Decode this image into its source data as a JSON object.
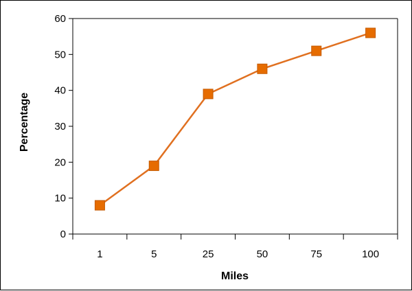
{
  "chart_data": {
    "type": "line",
    "categories": [
      "1",
      "5",
      "25",
      "50",
      "75",
      "100"
    ],
    "series": [
      {
        "values": [
          8,
          19,
          39,
          46,
          51,
          56
        ]
      }
    ],
    "title": "",
    "xlabel": "Miles",
    "ylabel": "Percentage",
    "ylim": [
      0,
      60
    ],
    "yticks": [
      0,
      10,
      20,
      30,
      40,
      50,
      60
    ],
    "grid": false,
    "legend": "none",
    "colors": {
      "line": "#e07020",
      "marker": "#e66c00",
      "marker_edge": "#c45a00"
    }
  }
}
